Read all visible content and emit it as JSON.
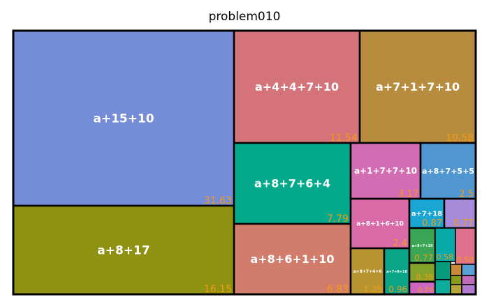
{
  "chart_data": {
    "type": "treemap",
    "title": "problem010",
    "value_color": "#f39c12",
    "nodes": [
      {
        "label": "a+15+10",
        "value": 31.63,
        "color": "#758cd9"
      },
      {
        "label": "a+8+17",
        "value": 16.15,
        "color": "#8f9210"
      },
      {
        "label": "a+4+4+7+10",
        "value": 11.54,
        "color": "#d5737b"
      },
      {
        "label": "a+7+1+7+10",
        "value": 10.58,
        "color": "#b88c3e"
      },
      {
        "label": "a+8+7+6+4",
        "value": 7.79,
        "color": "#04a98b"
      },
      {
        "label": "a+8+6+1+10",
        "value": 6.83,
        "color": "#d27c6c"
      },
      {
        "label": "a+1+7+7+10",
        "value": 3.17,
        "color": "#d36db3"
      },
      {
        "label": "a+8+7+5+5",
        "value": 2.5,
        "color": "#5096d1"
      },
      {
        "label": "a+8+1+6+10",
        "value": 2.4,
        "color": "#d96ba8"
      },
      {
        "label": "a+7+18",
        "value": 0.87,
        "color": "#1aa6d3"
      },
      {
        "label": "",
        "value": 0.77,
        "color": "#a78bd8"
      },
      {
        "label": "a+8+7+4+6",
        "value": 1.25,
        "color": "#b89531"
      },
      {
        "label": "a+7+8+10",
        "value": 0.96,
        "color": "#0aa588"
      },
      {
        "label": "a+8+7+10",
        "value": 0.77,
        "color": "#3aa655"
      },
      {
        "label": "",
        "value": 0.58,
        "color": "#0aa9a9"
      },
      {
        "label": "",
        "value": 0.58,
        "color": "#e07090"
      },
      {
        "label": "",
        "value": 0.38,
        "color": "#85a22a"
      },
      {
        "label": "",
        "value": 0.29,
        "color": "#cc66c0"
      },
      {
        "label": "",
        "value": null,
        "color": "#079a7c"
      },
      {
        "label": "",
        "value": null,
        "color": "#0cab9a"
      },
      {
        "label": "",
        "value": null,
        "color": "#c98a3a"
      },
      {
        "label": "",
        "value": null,
        "color": "#5aa0d6"
      },
      {
        "label": "",
        "value": null,
        "color": "#8a9a1a"
      },
      {
        "label": "",
        "value": null,
        "color": "#c06ab8"
      },
      {
        "label": "",
        "value": null,
        "color": "#b8a53a"
      },
      {
        "label": "",
        "value": null,
        "color": "#b07ad0"
      }
    ]
  }
}
